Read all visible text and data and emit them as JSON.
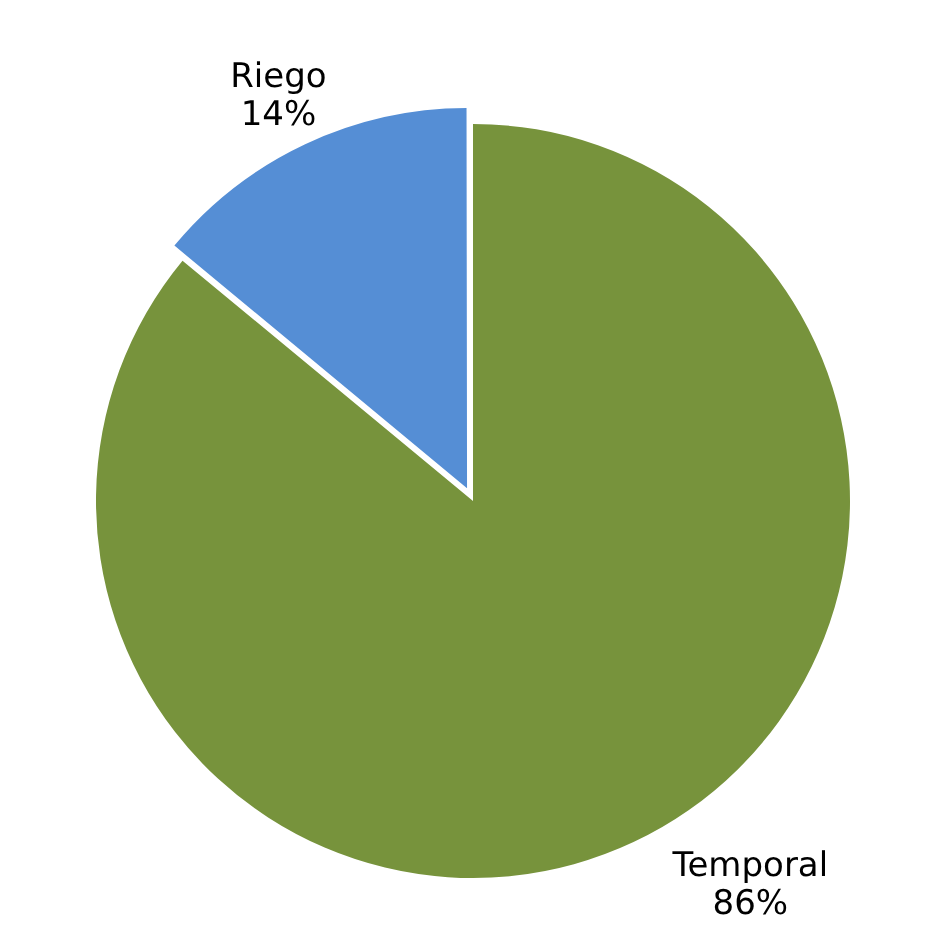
{
  "chart_data": {
    "type": "pie",
    "categories": [
      "Temporal",
      "Riego"
    ],
    "values": [
      86,
      14
    ],
    "colors": [
      "#77933c",
      "#558ed5"
    ],
    "value_labels": [
      "86%",
      "14%"
    ],
    "legend": false
  }
}
